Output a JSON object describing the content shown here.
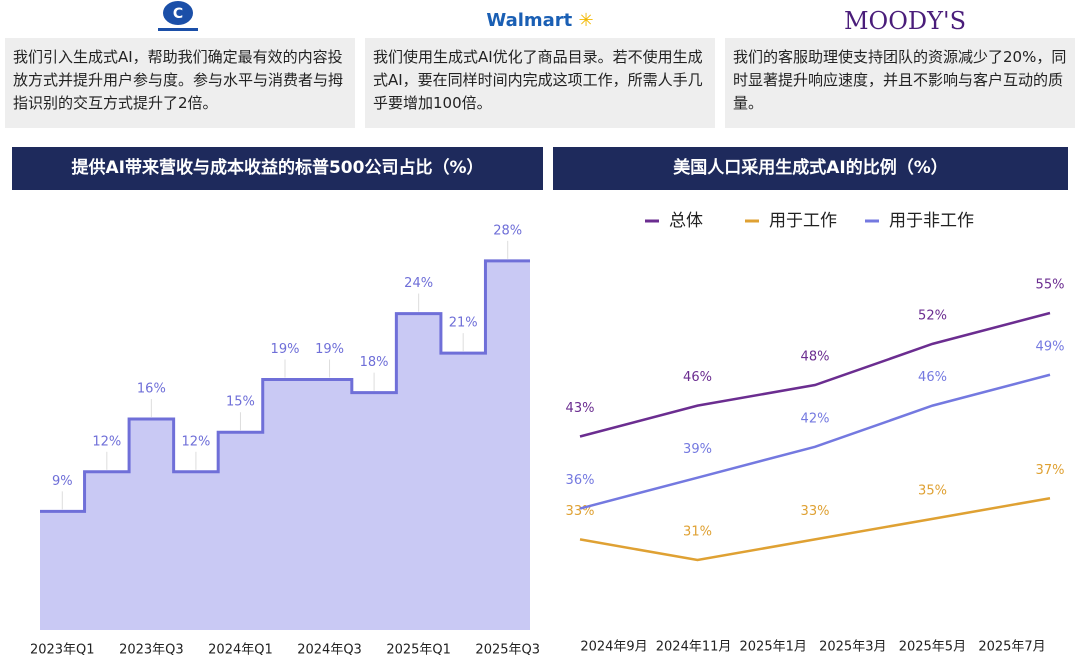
{
  "cards": [
    {
      "logo": "",
      "text": "我们引入生成式AI，帮助我们确定最有效的内容投放方式并提升用户参与度。参与水平与消费者与拇指识别的交互方式提升了2倍。"
    },
    {
      "logo": "Walmart",
      "text": "我们使用生成式AI优化了商品目录。若不使用生成式AI，要在同样时间内完成这项工作，所需人手几乎要增加100倍。"
    },
    {
      "logo": "MOODY'S",
      "text": "我们的客服助理使支持团队的资源减少了20%，同时显著提升响应速度，并且不影响与客户互动的质量。"
    }
  ],
  "chart_data": [
    {
      "type": "area",
      "step": true,
      "title": "提供AI带来营收与成本收益的标普500公司占比（%）",
      "categories": [
        "2023年Q1",
        null,
        "2023年Q3",
        null,
        "2024年Q1",
        null,
        "2024年Q3",
        null,
        "2025年Q1",
        null,
        "2025年Q3"
      ],
      "values": [
        9,
        12,
        16,
        12,
        15,
        19,
        19,
        18,
        24,
        21,
        28
      ],
      "value_labels": [
        "9%",
        "12%",
        "16%",
        "12%",
        "15%",
        "19%",
        "19%",
        "18%",
        "24%",
        "21%",
        "28%"
      ],
      "color": "#c9c9f4",
      "line_color": "#6f6fd8"
    },
    {
      "type": "line",
      "title": "美国人口采用生成式AI的比例（%）",
      "legend": "top",
      "xticks": [
        "2024年9月",
        "2024年11月",
        "2025年1月",
        "2025年3月",
        "2025年5月",
        "2025年7月"
      ],
      "series": [
        {
          "name": "总体",
          "color": "#6b2d90",
          "values": [
            43,
            46,
            48,
            52,
            55
          ],
          "value_labels": [
            "43%",
            "46%",
            "48%",
            "52%",
            "55%"
          ]
        },
        {
          "name": "用于工作",
          "color": "#dfa133",
          "values": [
            33,
            31,
            33,
            35,
            37
          ],
          "value_labels": [
            "33%",
            "31%",
            "33%",
            "35%",
            "37%"
          ]
        },
        {
          "name": "用于非工作",
          "color": "#7479e0",
          "values": [
            36,
            39,
            42,
            46,
            49
          ],
          "value_labels": [
            "36%",
            "39%",
            "42%",
            "46%",
            "49%"
          ]
        }
      ]
    }
  ]
}
